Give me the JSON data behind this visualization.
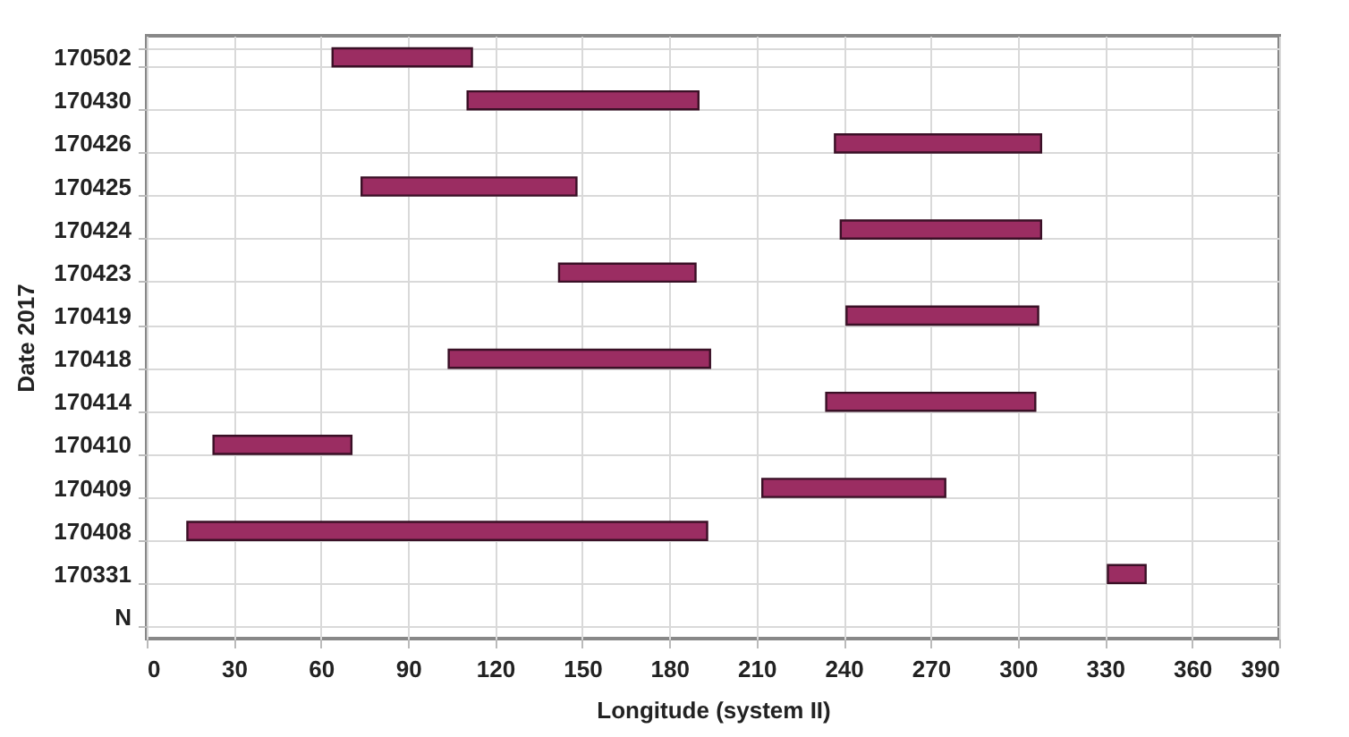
{
  "chart_data": {
    "type": "bar",
    "orientation": "horizontal",
    "xlabel": "Longitude (system II)",
    "ylabel": "Date 2017",
    "categories": [
      "170502",
      "170430",
      "170426",
      "170425",
      "170424",
      "170423",
      "170419",
      "170418",
      "170414",
      "170410",
      "170409",
      "170408",
      "170331",
      "N"
    ],
    "base": [
      64,
      110.5,
      237,
      74,
      239,
      142,
      241,
      104,
      234,
      23,
      212,
      14,
      331,
      null
    ],
    "values": [
      48,
      79.5,
      71,
      74,
      69,
      47,
      66,
      90,
      72,
      47.5,
      63,
      179,
      13,
      null
    ],
    "color": "#9b2d62",
    "xlim": [
      0,
      390
    ],
    "xticks": [
      0,
      30,
      60,
      90,
      120,
      150,
      180,
      210,
      240,
      270,
      300,
      330,
      360,
      390
    ],
    "grid": true,
    "legend": false
  }
}
